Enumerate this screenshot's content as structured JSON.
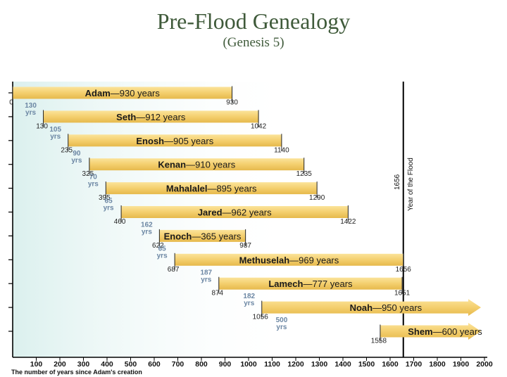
{
  "title": "Pre-Flood Genealogy",
  "subtitle": "(Genesis 5)",
  "chart_data": {
    "type": "bar",
    "title": "Pre-Flood Genealogy",
    "subtitle": "(Genesis 5)",
    "xlabel": "The number of years since Adam's creation",
    "xlim": [
      0,
      2000
    ],
    "xticks": [
      100,
      200,
      300,
      400,
      500,
      600,
      700,
      800,
      900,
      1000,
      1100,
      1200,
      1300,
      1400,
      1500,
      1600,
      1700,
      1800,
      1900,
      2000
    ],
    "flood": {
      "year": 1656,
      "year_label": "1656",
      "label": "Year of the Flood"
    },
    "series": [
      {
        "name": "Adam",
        "span": "930 years",
        "start": 0,
        "end": 930,
        "start_label": "0",
        "end_label": "930",
        "continues": false
      },
      {
        "name": "Seth",
        "span": "912 years",
        "start": 130,
        "end": 1042,
        "start_label": "130",
        "end_label": "1042",
        "continues": false
      },
      {
        "name": "Enosh",
        "span": "905 years",
        "start": 235,
        "end": 1140,
        "start_label": "235",
        "end_label": "1140",
        "continues": false
      },
      {
        "name": "Kenan",
        "span": "910 years",
        "start": 325,
        "end": 1235,
        "start_label": "325",
        "end_label": "1235",
        "continues": false
      },
      {
        "name": "Mahalalel",
        "span": "895 years",
        "start": 395,
        "end": 1290,
        "start_label": "395",
        "end_label": "1290",
        "continues": false
      },
      {
        "name": "Jared",
        "span": "962 years",
        "start": 460,
        "end": 1422,
        "start_label": "460",
        "end_label": "1422",
        "continues": false
      },
      {
        "name": "Enoch",
        "span": "365 years",
        "start": 622,
        "end": 987,
        "start_label": "622",
        "end_label": "987",
        "continues": false
      },
      {
        "name": "Methuselah",
        "span": "969 years",
        "start": 687,
        "end": 1656,
        "start_label": "687",
        "end_label": "1656",
        "continues": false
      },
      {
        "name": "Lamech",
        "span": "777 years",
        "start": 874,
        "end": 1651,
        "start_label": "874",
        "end_label": "1651",
        "continues": false
      },
      {
        "name": "Noah",
        "span": "950 years",
        "start": 1056,
        "end": 2000,
        "start_label": "1056",
        "end_label": "",
        "continues": true
      },
      {
        "name": "Shem",
        "span": "600 years",
        "start": 1558,
        "end": 2000,
        "start_label": "1558",
        "end_label": "",
        "continues": true
      }
    ],
    "gaps": [
      {
        "value": "130",
        "unit": "yrs"
      },
      {
        "value": "105",
        "unit": "yrs"
      },
      {
        "value": "90",
        "unit": "yrs"
      },
      {
        "value": "70",
        "unit": "yrs"
      },
      {
        "value": "65",
        "unit": "yrs"
      },
      {
        "value": "162",
        "unit": "yrs"
      },
      {
        "value": "65",
        "unit": "yrs"
      },
      {
        "value": "187",
        "unit": "yrs"
      },
      {
        "value": "182",
        "unit": "yrs"
      },
      {
        "value": "500",
        "unit": "yrs"
      }
    ],
    "colors": {
      "bar": "#f4cf6e",
      "bar_dark": "#e6b94c",
      "title": "#3f5a3a",
      "gap_label": "#6b86a3",
      "background_gradient": "#dbf0ee"
    }
  }
}
